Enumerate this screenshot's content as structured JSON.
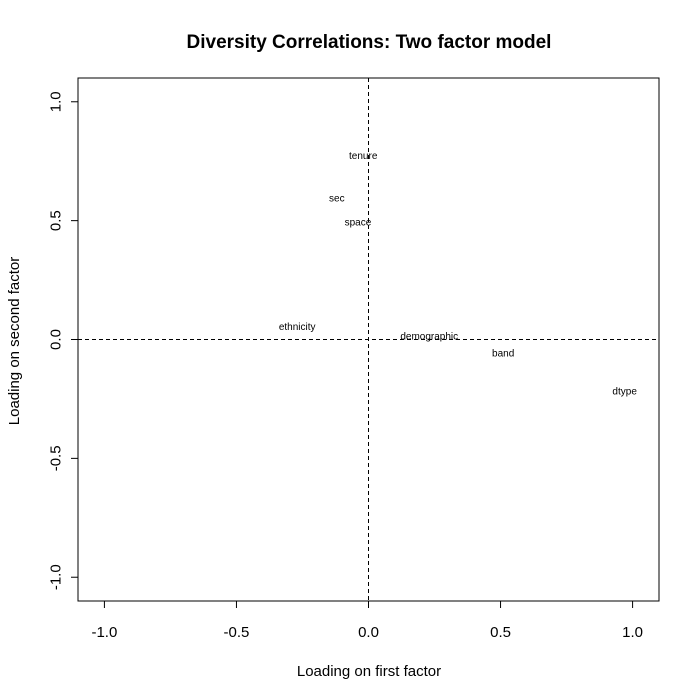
{
  "chart_data": {
    "type": "scatter",
    "title": "Diversity Correlations: Two factor model",
    "xlabel": "Loading on first factor",
    "ylabel": "Loading on second factor",
    "xlim": [
      -1.1,
      1.1
    ],
    "ylim": [
      -1.1,
      1.1
    ],
    "x_ticks": [
      -1.0,
      -0.5,
      0.0,
      0.5,
      1.0
    ],
    "x_tick_labels": [
      "-1.0",
      "-0.5",
      "0.0",
      "0.5",
      "1.0"
    ],
    "y_ticks": [
      -1.0,
      -0.5,
      0.0,
      0.5,
      1.0
    ],
    "y_tick_labels": [
      "-1.0",
      "-0.5",
      "0.0",
      "0.5",
      "1.0"
    ],
    "grid": false,
    "reference_lines": {
      "x": 0,
      "y": 0,
      "style": "dashed"
    },
    "points": [
      {
        "label": "tenure",
        "x": -0.02,
        "y": 0.77
      },
      {
        "label": "sec",
        "x": -0.12,
        "y": 0.59
      },
      {
        "label": "space",
        "x": -0.04,
        "y": 0.49
      },
      {
        "label": "ethnicity",
        "x": -0.27,
        "y": 0.05
      },
      {
        "label": "demographic",
        "x": 0.23,
        "y": 0.01
      },
      {
        "label": "band",
        "x": 0.51,
        "y": -0.06
      },
      {
        "label": "dtype",
        "x": 0.97,
        "y": -0.22
      }
    ]
  }
}
